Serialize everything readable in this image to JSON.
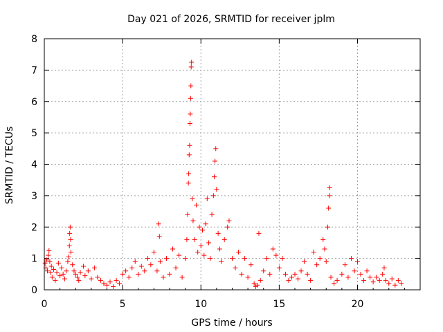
{
  "chart_data": {
    "type": "scatter",
    "title": "Day 021 of 2026, SRMTID for receiver jplm",
    "xlabel": "GPS time / hours",
    "ylabel": "SRMTID / TECUs",
    "xlim": [
      0,
      24
    ],
    "ylim": [
      0,
      8
    ],
    "xticks": [
      0,
      5,
      10,
      15,
      20
    ],
    "yticks": [
      0,
      1,
      2,
      3,
      4,
      5,
      6,
      7,
      8
    ],
    "grid": true,
    "legend": "none",
    "marker": "+",
    "color": "#ff0000",
    "series": [
      {
        "name": "SRMTID",
        "points": [
          [
            0.05,
            0.85
          ],
          [
            0.1,
            0.7
          ],
          [
            0.15,
            0.95
          ],
          [
            0.2,
            0.6
          ],
          [
            0.25,
            1.1
          ],
          [
            0.3,
            1.25
          ],
          [
            0.35,
            0.9
          ],
          [
            0.4,
            0.55
          ],
          [
            0.45,
            0.75
          ],
          [
            0.5,
            0.4
          ],
          [
            0.6,
            0.65
          ],
          [
            0.7,
            0.3
          ],
          [
            0.8,
            0.55
          ],
          [
            0.9,
            0.85
          ],
          [
            1.0,
            0.45
          ],
          [
            1.1,
            0.7
          ],
          [
            1.2,
            0.5
          ],
          [
            1.3,
            0.35
          ],
          [
            1.4,
            0.6
          ],
          [
            1.5,
            0.9
          ],
          [
            1.55,
            1.05
          ],
          [
            1.6,
            1.4
          ],
          [
            1.62,
            1.8
          ],
          [
            1.65,
            2.0
          ],
          [
            1.68,
            1.6
          ],
          [
            1.7,
            1.2
          ],
          [
            1.8,
            0.8
          ],
          [
            1.9,
            0.6
          ],
          [
            2.0,
            0.5
          ],
          [
            2.1,
            0.4
          ],
          [
            2.2,
            0.3
          ],
          [
            2.3,
            0.55
          ],
          [
            2.5,
            0.75
          ],
          [
            2.6,
            0.45
          ],
          [
            2.8,
            0.6
          ],
          [
            3.0,
            0.35
          ],
          [
            3.2,
            0.7
          ],
          [
            3.4,
            0.4
          ],
          [
            3.6,
            0.3
          ],
          [
            3.8,
            0.2
          ],
          [
            4.0,
            0.15
          ],
          [
            4.2,
            0.25
          ],
          [
            4.4,
            0.1
          ],
          [
            4.6,
            0.3
          ],
          [
            4.8,
            0.2
          ],
          [
            5.0,
            0.5
          ],
          [
            5.2,
            0.6
          ],
          [
            5.4,
            0.4
          ],
          [
            5.6,
            0.7
          ],
          [
            5.8,
            0.9
          ],
          [
            6.0,
            0.5
          ],
          [
            6.2,
            0.75
          ],
          [
            6.4,
            0.6
          ],
          [
            6.6,
            1.0
          ],
          [
            6.8,
            0.8
          ],
          [
            7.0,
            1.2
          ],
          [
            7.2,
            0.6
          ],
          [
            7.3,
            2.1
          ],
          [
            7.35,
            1.7
          ],
          [
            7.4,
            0.9
          ],
          [
            7.6,
            0.4
          ],
          [
            7.8,
            1.0
          ],
          [
            8.0,
            0.5
          ],
          [
            8.2,
            1.3
          ],
          [
            8.4,
            0.7
          ],
          [
            8.6,
            1.1
          ],
          [
            8.8,
            0.4
          ],
          [
            9.0,
            1.0
          ],
          [
            9.1,
            1.6
          ],
          [
            9.15,
            2.4
          ],
          [
            9.2,
            3.4
          ],
          [
            9.22,
            3.7
          ],
          [
            9.25,
            4.3
          ],
          [
            9.28,
            4.6
          ],
          [
            9.3,
            5.3
          ],
          [
            9.32,
            5.6
          ],
          [
            9.34,
            6.1
          ],
          [
            9.36,
            6.5
          ],
          [
            9.38,
            7.1
          ],
          [
            9.4,
            7.25
          ],
          [
            9.45,
            2.9
          ],
          [
            9.5,
            2.2
          ],
          [
            9.6,
            1.6
          ],
          [
            9.7,
            2.7
          ],
          [
            9.8,
            1.2
          ],
          [
            9.9,
            2.0
          ],
          [
            10.0,
            1.4
          ],
          [
            10.1,
            1.9
          ],
          [
            10.2,
            1.1
          ],
          [
            10.3,
            2.1
          ],
          [
            10.4,
            2.9
          ],
          [
            10.5,
            1.5
          ],
          [
            10.6,
            1.0
          ],
          [
            10.7,
            2.4
          ],
          [
            10.8,
            3.0
          ],
          [
            10.85,
            3.6
          ],
          [
            10.9,
            4.1
          ],
          [
            10.95,
            4.5
          ],
          [
            11.0,
            3.2
          ],
          [
            11.1,
            1.8
          ],
          [
            11.2,
            1.3
          ],
          [
            11.3,
            0.9
          ],
          [
            11.5,
            1.6
          ],
          [
            11.7,
            2.0
          ],
          [
            11.8,
            2.2
          ],
          [
            12.0,
            1.0
          ],
          [
            12.2,
            0.7
          ],
          [
            12.4,
            1.2
          ],
          [
            12.6,
            0.5
          ],
          [
            12.8,
            1.0
          ],
          [
            13.0,
            0.4
          ],
          [
            13.2,
            0.8
          ],
          [
            13.4,
            0.2
          ],
          [
            13.5,
            0.1
          ],
          [
            13.6,
            0.15
          ],
          [
            13.7,
            1.8
          ],
          [
            13.8,
            0.3
          ],
          [
            14.0,
            0.6
          ],
          [
            14.2,
            1.0
          ],
          [
            14.4,
            0.5
          ],
          [
            14.6,
            1.3
          ],
          [
            14.8,
            1.1
          ],
          [
            15.0,
            0.7
          ],
          [
            15.2,
            1.0
          ],
          [
            15.4,
            0.5
          ],
          [
            15.6,
            0.3
          ],
          [
            15.8,
            0.4
          ],
          [
            16.0,
            0.5
          ],
          [
            16.2,
            0.35
          ],
          [
            16.4,
            0.6
          ],
          [
            16.6,
            0.9
          ],
          [
            16.8,
            0.5
          ],
          [
            17.0,
            0.3
          ],
          [
            17.2,
            1.2
          ],
          [
            17.4,
            0.8
          ],
          [
            17.6,
            1.0
          ],
          [
            17.8,
            1.6
          ],
          [
            17.9,
            1.3
          ],
          [
            18.0,
            0.9
          ],
          [
            18.1,
            2.0
          ],
          [
            18.15,
            2.6
          ],
          [
            18.2,
            3.0
          ],
          [
            18.22,
            3.25
          ],
          [
            18.3,
            0.4
          ],
          [
            18.5,
            0.2
          ],
          [
            18.7,
            0.3
          ],
          [
            19.0,
            0.5
          ],
          [
            19.2,
            0.8
          ],
          [
            19.4,
            0.4
          ],
          [
            19.6,
            1.0
          ],
          [
            19.8,
            0.6
          ],
          [
            20.0,
            0.9
          ],
          [
            20.2,
            0.5
          ],
          [
            20.4,
            0.3
          ],
          [
            20.6,
            0.6
          ],
          [
            20.8,
            0.4
          ],
          [
            21.0,
            0.25
          ],
          [
            21.2,
            0.4
          ],
          [
            21.4,
            0.3
          ],
          [
            21.6,
            0.5
          ],
          [
            21.7,
            0.7
          ],
          [
            21.8,
            0.3
          ],
          [
            22.0,
            0.2
          ],
          [
            22.2,
            0.35
          ],
          [
            22.4,
            0.15
          ],
          [
            22.6,
            0.3
          ],
          [
            22.8,
            0.2
          ]
        ]
      }
    ]
  }
}
